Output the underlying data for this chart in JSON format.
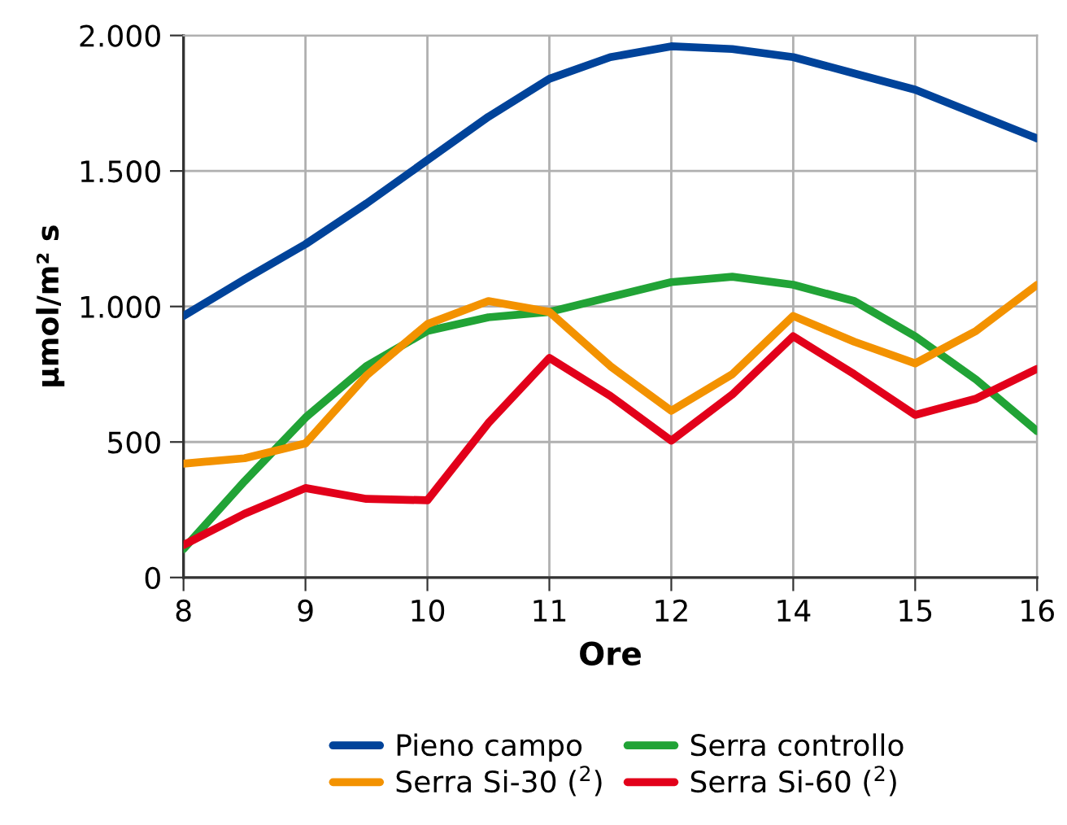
{
  "chart_data": {
    "type": "line",
    "xlabel": "Ore",
    "ylabel": "µmol/m² s",
    "categories": [
      "8",
      null,
      "9",
      null,
      "10",
      null,
      "11",
      null,
      "12",
      null,
      "14",
      null,
      "15",
      null,
      "16"
    ],
    "ylim": [
      0,
      2000
    ],
    "yticks": [
      {
        "value": 0,
        "label": "0"
      },
      {
        "value": 500,
        "label": "500"
      },
      {
        "value": 1000,
        "label": "1.000"
      },
      {
        "value": 1500,
        "label": "1.500"
      },
      {
        "value": 2000,
        "label": "2.000"
      }
    ],
    "grid": true,
    "legend": "bottom",
    "marker": "none",
    "line_style": "solid",
    "series": [
      {
        "name": "Pieno campo",
        "color": "#00439a",
        "values": [
          965,
          1100,
          1230,
          1380,
          1540,
          1700,
          1840,
          1920,
          1960,
          1950,
          1920,
          1860,
          1800,
          1710,
          1620
        ]
      },
      {
        "name": "Serra controllo",
        "color": "#21a336",
        "values": [
          105,
          355,
          590,
          780,
          910,
          960,
          980,
          1035,
          1090,
          1110,
          1080,
          1020,
          890,
          730,
          540
        ]
      },
      {
        "name": "Serra Si-30 ($^{2}$)",
        "color": "#f39200",
        "values": [
          420,
          440,
          495,
          745,
          935,
          1020,
          980,
          780,
          615,
          750,
          965,
          870,
          790,
          910,
          1080
        ]
      },
      {
        "name": "Serra Si-60 ($^{2}$)",
        "color": "#e2001a",
        "values": [
          120,
          235,
          330,
          290,
          285,
          570,
          810,
          670,
          505,
          675,
          890,
          750,
          600,
          660,
          770
        ]
      }
    ]
  }
}
